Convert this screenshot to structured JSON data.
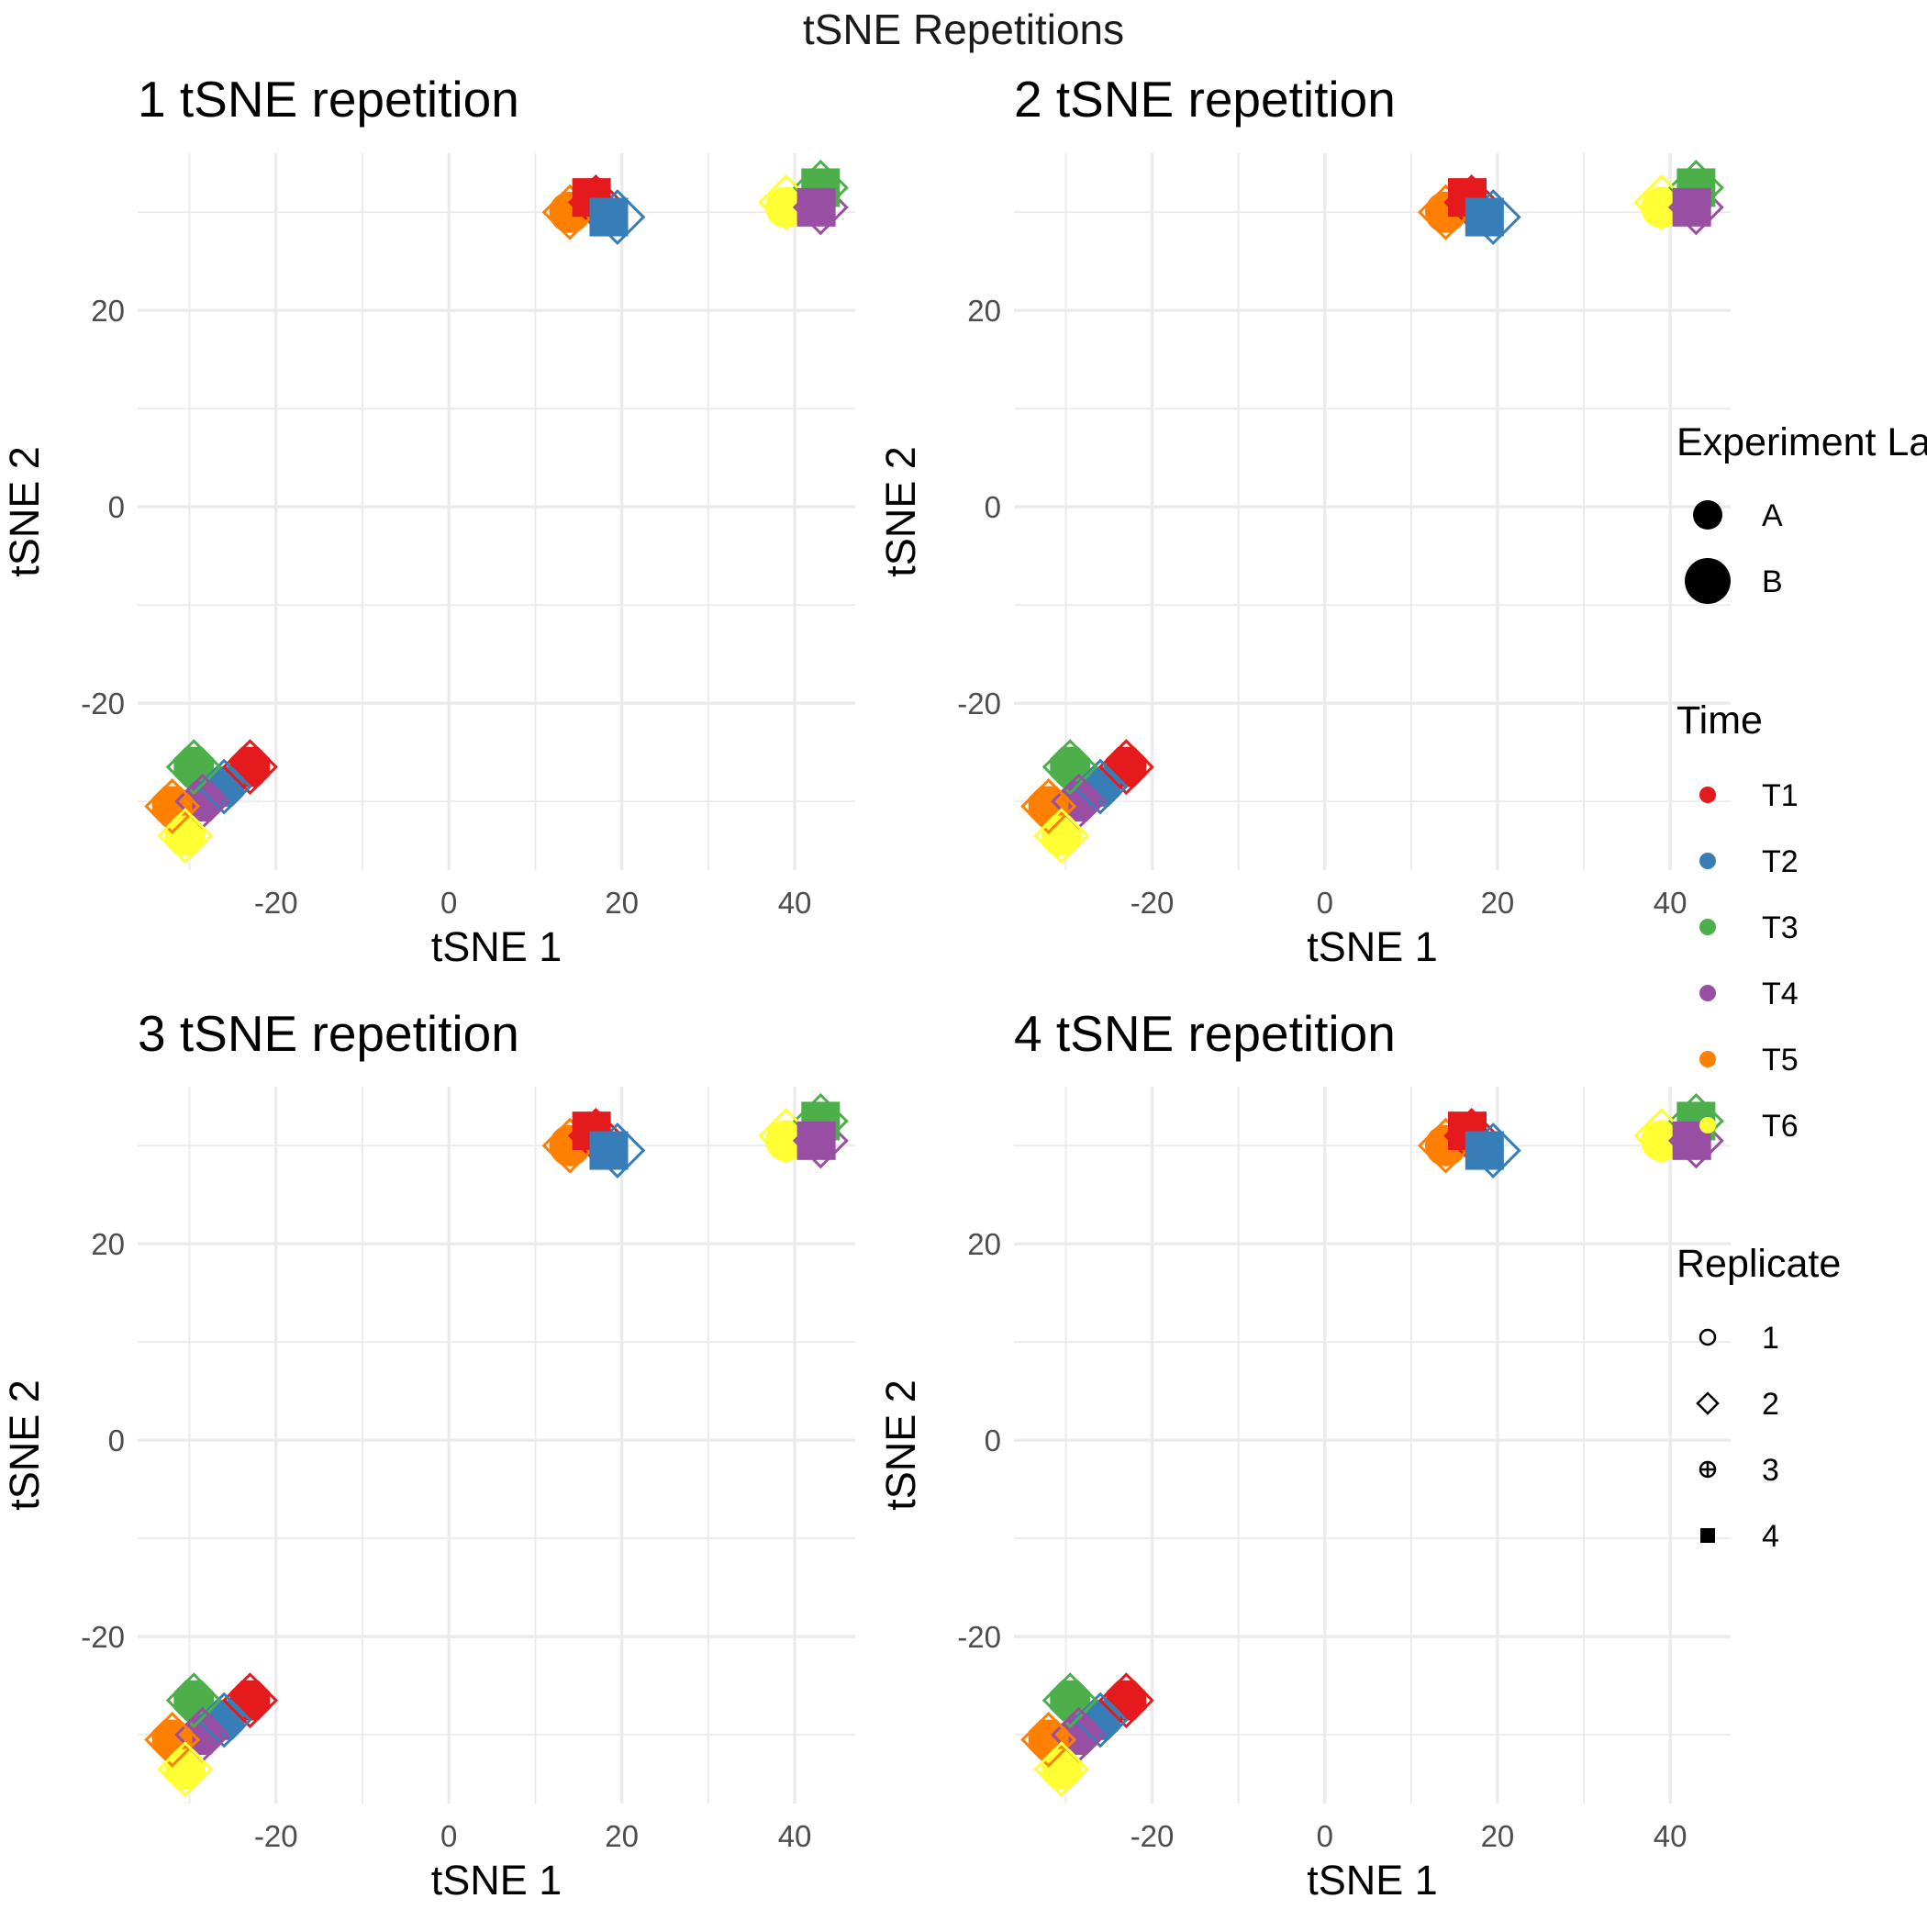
{
  "figure_title": "tSNE Repetitions",
  "colors": {
    "T1": "#E41A1C",
    "T2": "#377EB8",
    "T3": "#4DAF4A",
    "T4": "#984EA3",
    "T5": "#FF7F00",
    "T6": "#FFFF33"
  },
  "legend": {
    "experiment": {
      "title": "Experiment La",
      "items": [
        "A",
        "B"
      ]
    },
    "time": {
      "title": "Time",
      "items": [
        "T1",
        "T2",
        "T3",
        "T4",
        "T5",
        "T6"
      ]
    },
    "replicate": {
      "title": "Replicate",
      "items": [
        "1",
        "2",
        "3",
        "4"
      ],
      "shapes": [
        "circle-open",
        "diamond-open",
        "circle-plus",
        "square-filled"
      ]
    }
  },
  "chart_data": [
    {
      "type": "scatter",
      "title": "1 tSNE repetition",
      "xlabel": "tSNE 1",
      "ylabel": "tSNE 2",
      "xlim": [
        -36,
        47
      ],
      "ylim": [
        -37,
        36
      ],
      "xticks": [
        -20,
        0,
        20,
        40
      ],
      "yticks": [
        -20,
        0,
        20
      ],
      "grid": true,
      "points": [
        {
          "x": 17.0,
          "y": 31.0,
          "time": "T1",
          "replicate": "2",
          "experiment": "B"
        },
        {
          "x": 16.5,
          "y": 31.5,
          "time": "T1",
          "replicate": "4",
          "experiment": "B"
        },
        {
          "x": 19.5,
          "y": 29.5,
          "time": "T2",
          "replicate": "2",
          "experiment": "B"
        },
        {
          "x": 18.5,
          "y": 29.5,
          "time": "T2",
          "replicate": "4",
          "experiment": "B"
        },
        {
          "x": 14.0,
          "y": 30.0,
          "time": "T5",
          "replicate": "2",
          "experiment": "B"
        },
        {
          "x": 14.0,
          "y": 30.0,
          "time": "T5",
          "replicate": "1",
          "experiment": "B"
        },
        {
          "x": 43.0,
          "y": 32.5,
          "time": "T3",
          "replicate": "2",
          "experiment": "B"
        },
        {
          "x": 43.0,
          "y": 32.5,
          "time": "T3",
          "replicate": "4",
          "experiment": "B"
        },
        {
          "x": 43.0,
          "y": 30.5,
          "time": "T4",
          "replicate": "2",
          "experiment": "B"
        },
        {
          "x": 42.5,
          "y": 30.5,
          "time": "T4",
          "replicate": "4",
          "experiment": "B"
        },
        {
          "x": 39.0,
          "y": 31.0,
          "time": "T6",
          "replicate": "2",
          "experiment": "B"
        },
        {
          "x": 39.0,
          "y": 30.5,
          "time": "T6",
          "replicate": "1",
          "experiment": "B"
        },
        {
          "x": -23.0,
          "y": -26.5,
          "time": "T1",
          "replicate": "2",
          "experiment": "B"
        },
        {
          "x": -23.0,
          "y": -26.5,
          "time": "T1",
          "replicate": "3",
          "experiment": "B"
        },
        {
          "x": -26.0,
          "y": -28.5,
          "time": "T2",
          "replicate": "2",
          "experiment": "B"
        },
        {
          "x": -26.0,
          "y": -28.5,
          "time": "T2",
          "replicate": "3",
          "experiment": "B"
        },
        {
          "x": -29.5,
          "y": -26.5,
          "time": "T3",
          "replicate": "2",
          "experiment": "B"
        },
        {
          "x": -29.5,
          "y": -26.5,
          "time": "T3",
          "replicate": "3",
          "experiment": "B"
        },
        {
          "x": -28.5,
          "y": -30.0,
          "time": "T4",
          "replicate": "2",
          "experiment": "B"
        },
        {
          "x": -28.5,
          "y": -30.0,
          "time": "T4",
          "replicate": "3",
          "experiment": "B"
        },
        {
          "x": -32.0,
          "y": -30.5,
          "time": "T5",
          "replicate": "2",
          "experiment": "B"
        },
        {
          "x": -32.0,
          "y": -30.5,
          "time": "T5",
          "replicate": "3",
          "experiment": "B"
        },
        {
          "x": -30.5,
          "y": -33.5,
          "time": "T6",
          "replicate": "2",
          "experiment": "B"
        },
        {
          "x": -30.5,
          "y": -33.5,
          "time": "T6",
          "replicate": "3",
          "experiment": "B"
        }
      ]
    },
    {
      "type": "scatter",
      "title": "2 tSNE repetition",
      "xlabel": "tSNE 1",
      "ylabel": "tSNE 2",
      "xlim": [
        -36,
        47
      ],
      "ylim": [
        -37,
        36
      ],
      "xticks": [
        -20,
        0,
        20,
        40
      ],
      "yticks": [
        -20,
        0,
        20
      ],
      "grid": true,
      "points": [
        {
          "x": 17.0,
          "y": 31.0,
          "time": "T1",
          "replicate": "2",
          "experiment": "B"
        },
        {
          "x": 16.5,
          "y": 31.5,
          "time": "T1",
          "replicate": "4",
          "experiment": "B"
        },
        {
          "x": 19.5,
          "y": 29.5,
          "time": "T2",
          "replicate": "2",
          "experiment": "B"
        },
        {
          "x": 18.5,
          "y": 29.5,
          "time": "T2",
          "replicate": "4",
          "experiment": "B"
        },
        {
          "x": 14.0,
          "y": 30.0,
          "time": "T5",
          "replicate": "2",
          "experiment": "B"
        },
        {
          "x": 14.0,
          "y": 30.0,
          "time": "T5",
          "replicate": "1",
          "experiment": "B"
        },
        {
          "x": 43.0,
          "y": 32.5,
          "time": "T3",
          "replicate": "2",
          "experiment": "B"
        },
        {
          "x": 43.0,
          "y": 32.5,
          "time": "T3",
          "replicate": "4",
          "experiment": "B"
        },
        {
          "x": 43.0,
          "y": 30.5,
          "time": "T4",
          "replicate": "2",
          "experiment": "B"
        },
        {
          "x": 42.5,
          "y": 30.5,
          "time": "T4",
          "replicate": "4",
          "experiment": "B"
        },
        {
          "x": 39.0,
          "y": 31.0,
          "time": "T6",
          "replicate": "2",
          "experiment": "B"
        },
        {
          "x": 39.0,
          "y": 30.5,
          "time": "T6",
          "replicate": "1",
          "experiment": "B"
        },
        {
          "x": -23.0,
          "y": -26.5,
          "time": "T1",
          "replicate": "2",
          "experiment": "B"
        },
        {
          "x": -23.0,
          "y": -26.5,
          "time": "T1",
          "replicate": "3",
          "experiment": "B"
        },
        {
          "x": -26.0,
          "y": -28.5,
          "time": "T2",
          "replicate": "2",
          "experiment": "B"
        },
        {
          "x": -26.0,
          "y": -28.5,
          "time": "T2",
          "replicate": "3",
          "experiment": "B"
        },
        {
          "x": -29.5,
          "y": -26.5,
          "time": "T3",
          "replicate": "2",
          "experiment": "B"
        },
        {
          "x": -29.5,
          "y": -26.5,
          "time": "T3",
          "replicate": "3",
          "experiment": "B"
        },
        {
          "x": -28.5,
          "y": -30.0,
          "time": "T4",
          "replicate": "2",
          "experiment": "B"
        },
        {
          "x": -28.5,
          "y": -30.0,
          "time": "T4",
          "replicate": "3",
          "experiment": "B"
        },
        {
          "x": -32.0,
          "y": -30.5,
          "time": "T5",
          "replicate": "2",
          "experiment": "B"
        },
        {
          "x": -32.0,
          "y": -30.5,
          "time": "T5",
          "replicate": "3",
          "experiment": "B"
        },
        {
          "x": -30.5,
          "y": -33.5,
          "time": "T6",
          "replicate": "2",
          "experiment": "B"
        },
        {
          "x": -30.5,
          "y": -33.5,
          "time": "T6",
          "replicate": "3",
          "experiment": "B"
        }
      ]
    },
    {
      "type": "scatter",
      "title": "3 tSNE repetition",
      "xlabel": "tSNE 1",
      "ylabel": "tSNE 2",
      "xlim": [
        -36,
        47
      ],
      "ylim": [
        -37,
        36
      ],
      "xticks": [
        -20,
        0,
        20,
        40
      ],
      "yticks": [
        -20,
        0,
        20
      ],
      "grid": true,
      "points": [
        {
          "x": 17.0,
          "y": 31.0,
          "time": "T1",
          "replicate": "2",
          "experiment": "B"
        },
        {
          "x": 16.5,
          "y": 31.5,
          "time": "T1",
          "replicate": "4",
          "experiment": "B"
        },
        {
          "x": 19.5,
          "y": 29.5,
          "time": "T2",
          "replicate": "2",
          "experiment": "B"
        },
        {
          "x": 18.5,
          "y": 29.5,
          "time": "T2",
          "replicate": "4",
          "experiment": "B"
        },
        {
          "x": 14.0,
          "y": 30.0,
          "time": "T5",
          "replicate": "2",
          "experiment": "B"
        },
        {
          "x": 14.0,
          "y": 30.0,
          "time": "T5",
          "replicate": "1",
          "experiment": "B"
        },
        {
          "x": 43.0,
          "y": 32.5,
          "time": "T3",
          "replicate": "2",
          "experiment": "B"
        },
        {
          "x": 43.0,
          "y": 32.5,
          "time": "T3",
          "replicate": "4",
          "experiment": "B"
        },
        {
          "x": 43.0,
          "y": 30.5,
          "time": "T4",
          "replicate": "2",
          "experiment": "B"
        },
        {
          "x": 42.5,
          "y": 30.5,
          "time": "T4",
          "replicate": "4",
          "experiment": "B"
        },
        {
          "x": 39.0,
          "y": 31.0,
          "time": "T6",
          "replicate": "2",
          "experiment": "B"
        },
        {
          "x": 39.0,
          "y": 30.5,
          "time": "T6",
          "replicate": "1",
          "experiment": "B"
        },
        {
          "x": -23.0,
          "y": -26.5,
          "time": "T1",
          "replicate": "2",
          "experiment": "B"
        },
        {
          "x": -23.0,
          "y": -26.5,
          "time": "T1",
          "replicate": "3",
          "experiment": "B"
        },
        {
          "x": -26.0,
          "y": -28.5,
          "time": "T2",
          "replicate": "2",
          "experiment": "B"
        },
        {
          "x": -26.0,
          "y": -28.5,
          "time": "T2",
          "replicate": "3",
          "experiment": "B"
        },
        {
          "x": -29.5,
          "y": -26.5,
          "time": "T3",
          "replicate": "2",
          "experiment": "B"
        },
        {
          "x": -29.5,
          "y": -26.5,
          "time": "T3",
          "replicate": "3",
          "experiment": "B"
        },
        {
          "x": -28.5,
          "y": -30.0,
          "time": "T4",
          "replicate": "2",
          "experiment": "B"
        },
        {
          "x": -28.5,
          "y": -30.0,
          "time": "T4",
          "replicate": "3",
          "experiment": "B"
        },
        {
          "x": -32.0,
          "y": -30.5,
          "time": "T5",
          "replicate": "2",
          "experiment": "B"
        },
        {
          "x": -32.0,
          "y": -30.5,
          "time": "T5",
          "replicate": "3",
          "experiment": "B"
        },
        {
          "x": -30.5,
          "y": -33.5,
          "time": "T6",
          "replicate": "2",
          "experiment": "B"
        },
        {
          "x": -30.5,
          "y": -33.5,
          "time": "T6",
          "replicate": "3",
          "experiment": "B"
        }
      ]
    },
    {
      "type": "scatter",
      "title": "4 tSNE repetition",
      "xlabel": "tSNE 1",
      "ylabel": "tSNE 2",
      "xlim": [
        -36,
        47
      ],
      "ylim": [
        -37,
        36
      ],
      "xticks": [
        -20,
        0,
        20,
        40
      ],
      "yticks": [
        -20,
        0,
        20
      ],
      "grid": true,
      "points": [
        {
          "x": 17.0,
          "y": 31.0,
          "time": "T1",
          "replicate": "2",
          "experiment": "B"
        },
        {
          "x": 16.5,
          "y": 31.5,
          "time": "T1",
          "replicate": "4",
          "experiment": "B"
        },
        {
          "x": 19.5,
          "y": 29.5,
          "time": "T2",
          "replicate": "2",
          "experiment": "B"
        },
        {
          "x": 18.5,
          "y": 29.5,
          "time": "T2",
          "replicate": "4",
          "experiment": "B"
        },
        {
          "x": 14.0,
          "y": 30.0,
          "time": "T5",
          "replicate": "2",
          "experiment": "B"
        },
        {
          "x": 14.0,
          "y": 30.0,
          "time": "T5",
          "replicate": "1",
          "experiment": "B"
        },
        {
          "x": 43.0,
          "y": 32.5,
          "time": "T3",
          "replicate": "2",
          "experiment": "B"
        },
        {
          "x": 43.0,
          "y": 32.5,
          "time": "T3",
          "replicate": "4",
          "experiment": "B"
        },
        {
          "x": 43.0,
          "y": 30.5,
          "time": "T4",
          "replicate": "2",
          "experiment": "B"
        },
        {
          "x": 42.5,
          "y": 30.5,
          "time": "T4",
          "replicate": "4",
          "experiment": "B"
        },
        {
          "x": 39.0,
          "y": 31.0,
          "time": "T6",
          "replicate": "2",
          "experiment": "B"
        },
        {
          "x": 39.0,
          "y": 30.5,
          "time": "T6",
          "replicate": "1",
          "experiment": "B"
        },
        {
          "x": -23.0,
          "y": -26.5,
          "time": "T1",
          "replicate": "2",
          "experiment": "B"
        },
        {
          "x": -23.0,
          "y": -26.5,
          "time": "T1",
          "replicate": "3",
          "experiment": "B"
        },
        {
          "x": -26.0,
          "y": -28.5,
          "time": "T2",
          "replicate": "2",
          "experiment": "B"
        },
        {
          "x": -26.0,
          "y": -28.5,
          "time": "T2",
          "replicate": "3",
          "experiment": "B"
        },
        {
          "x": -29.5,
          "y": -26.5,
          "time": "T3",
          "replicate": "2",
          "experiment": "B"
        },
        {
          "x": -29.5,
          "y": -26.5,
          "time": "T3",
          "replicate": "3",
          "experiment": "B"
        },
        {
          "x": -28.5,
          "y": -30.0,
          "time": "T4",
          "replicate": "2",
          "experiment": "B"
        },
        {
          "x": -28.5,
          "y": -30.0,
          "time": "T4",
          "replicate": "3",
          "experiment": "B"
        },
        {
          "x": -32.0,
          "y": -30.5,
          "time": "T5",
          "replicate": "2",
          "experiment": "B"
        },
        {
          "x": -32.0,
          "y": -30.5,
          "time": "T5",
          "replicate": "3",
          "experiment": "B"
        },
        {
          "x": -30.5,
          "y": -33.5,
          "time": "T6",
          "replicate": "2",
          "experiment": "B"
        },
        {
          "x": -30.5,
          "y": -33.5,
          "time": "T6",
          "replicate": "3",
          "experiment": "B"
        }
      ]
    }
  ]
}
